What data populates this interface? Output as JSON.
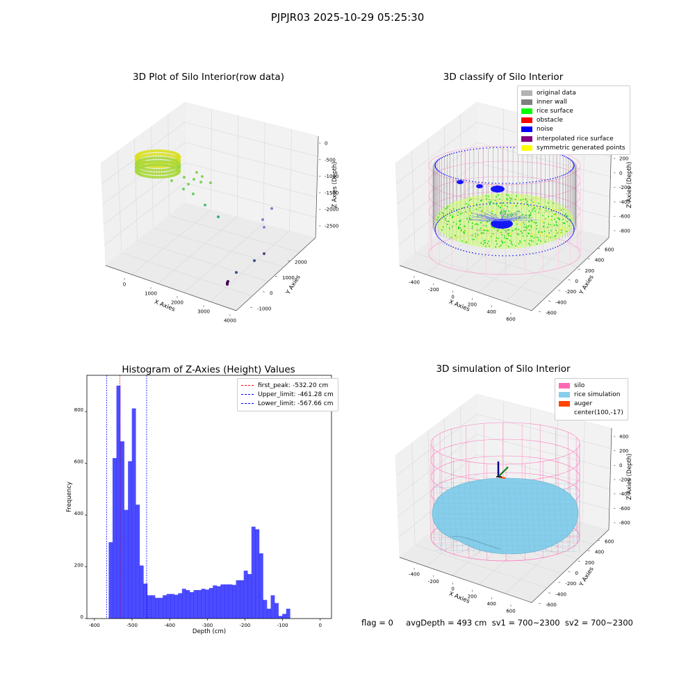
{
  "figure": {
    "suptitle": "PJPJR03 2025-10-29 05:25:30",
    "status_line": "flag = 0     avgDepth = 493 cm  sv1 = 700~2300  sv2 = 700~2300"
  },
  "panels": {
    "raw": {
      "title": "3D Plot of Silo Interior(row data)",
      "xlabel": "X Axies",
      "ylabel": "Y Axies",
      "zlabel": "Z Axies (Depth)",
      "xticks": [
        "0",
        "1000",
        "2000",
        "3000",
        "4000"
      ],
      "yticks": [
        "-1000",
        "0",
        "1000",
        "2000"
      ],
      "zticks": [
        "0",
        "-500",
        "-1000",
        "-1500",
        "-2000",
        "-2500"
      ]
    },
    "classify": {
      "title": "3D classify of Silo Interior",
      "xlabel": "X Axies",
      "ylabel": "Y Axies",
      "zlabel": "Z Axies (Depth)",
      "xticks": [
        "-400",
        "-200",
        "0",
        "200",
        "400",
        "600"
      ],
      "yticks": [
        "-600",
        "-400",
        "-200",
        "0",
        "200",
        "400",
        "600"
      ],
      "zticks": [
        "200",
        "0",
        "-200",
        "-400",
        "-600",
        "-800"
      ],
      "zticks_partial": "00",
      "legend": [
        {
          "label": "original data",
          "color": "#b3b3b3"
        },
        {
          "label": "inner wall",
          "color": "#808080"
        },
        {
          "label": "rice surface",
          "color": "#00ff00"
        },
        {
          "label": "obstacle",
          "color": "#ff0000"
        },
        {
          "label": "noise",
          "color": "#0000ff"
        },
        {
          "label": "interpolated rice surface",
          "color": "#800080"
        },
        {
          "label": "symmetric generated points",
          "color": "#ffff00"
        }
      ]
    },
    "simulation": {
      "title": "3D simulation of Silo Interior",
      "xlabel": "X Axies",
      "ylabel": "Y Axies",
      "zlabel": "Z Axies (Depth)",
      "xticks": [
        "-400",
        "-200",
        "0",
        "200",
        "400",
        "600"
      ],
      "yticks": [
        "-600",
        "-400",
        "-200",
        "0",
        "200",
        "400",
        "600"
      ],
      "zticks": [
        "400",
        "200",
        "0",
        "-200",
        "-400",
        "-600",
        "-800"
      ],
      "legend": [
        {
          "label": "silo",
          "color": "#ff69b4"
        },
        {
          "label": "rice simulation",
          "color": "#87ceeb"
        },
        {
          "label": "auger",
          "color": "#ff4500"
        },
        {
          "label": "center(100,-17)",
          "color": ""
        }
      ]
    }
  },
  "chart_data": {
    "type": "bar",
    "title": "Histogram of Z-Axies (Height) Values",
    "xlabel": "Depth (cm)",
    "ylabel": "Frequency",
    "xlim": [
      -620,
      30
    ],
    "ylim": [
      0,
      940
    ],
    "xticks": [
      -600,
      -500,
      -400,
      -300,
      -200,
      -100,
      0
    ],
    "yticks": [
      0,
      200,
      400,
      600,
      800
    ],
    "bar_color": "#0000ff",
    "bin_width": 10.25,
    "bin_start": -562,
    "values": [
      295,
      620,
      900,
      685,
      420,
      608,
      812,
      440,
      205,
      135,
      90,
      90,
      80,
      80,
      90,
      95,
      95,
      92,
      98,
      115,
      110,
      102,
      110,
      110,
      115,
      112,
      118,
      128,
      125,
      132,
      132,
      132,
      130,
      148,
      148,
      185,
      172,
      355,
      345,
      252,
      72,
      38,
      90,
      60,
      10,
      18,
      38
    ],
    "vlines": [
      {
        "label": "first_peak: -532.20 cm",
        "x": -532.2,
        "color": "#ff0000"
      },
      {
        "label": "Upper_limit: -461.28 cm",
        "x": -461.28,
        "color": "#0000ff"
      },
      {
        "label": "Lower_limit: -567.66 cm",
        "x": -567.66,
        "color": "#0000ff"
      }
    ],
    "legend_position": "upper-right",
    "grid": false
  }
}
